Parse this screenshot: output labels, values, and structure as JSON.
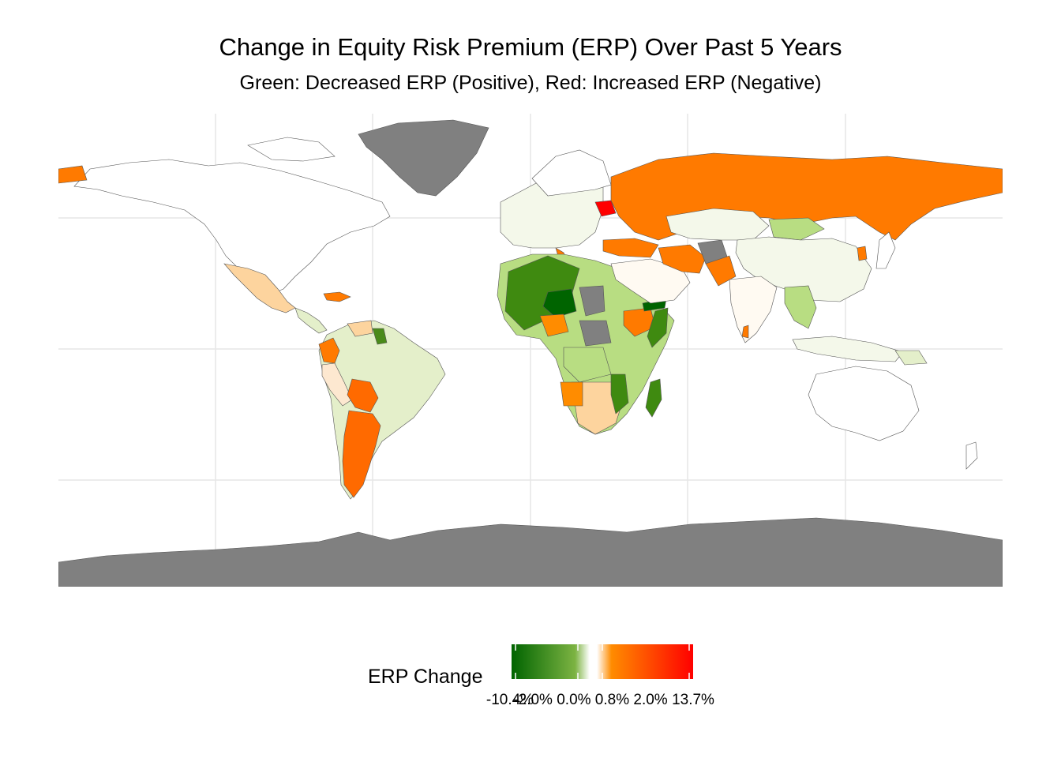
{
  "title": "Change in Equity Risk Premium (ERP) Over Past 5 Years",
  "subtitle": "Green: Decreased ERP (Positive), Red: Increased ERP (Negative)",
  "legend": {
    "title": "ERP Change",
    "min_label": "-10.4%",
    "mid_label": "-2.0%  0.0%  0.8%  2.0%",
    "max_label": "13.7%",
    "min_value": -10.4,
    "max_value": 13.7,
    "colors": {
      "dark_green": "#006400",
      "green": "#7cb342",
      "white": "#ffffff",
      "orange": "#ff8c00",
      "red": "#ff0000",
      "no_data": "#808080"
    }
  }
}
